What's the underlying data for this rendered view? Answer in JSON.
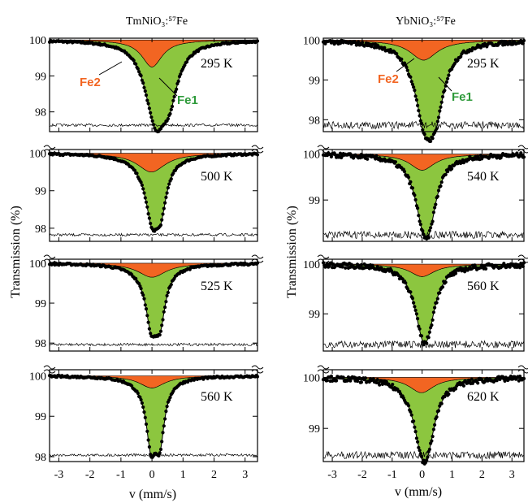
{
  "colors": {
    "fe1": "#8cc63f",
    "fe2": "#f26522",
    "data": "#000000"
  },
  "x_tick_labels": [
    "-3",
    "-2",
    "-1",
    "0",
    "1",
    "2",
    "3"
  ],
  "xlabel": "v (mm/s)",
  "ylabel": "Transmission (%)",
  "chart_data": [
    {
      "type": "line",
      "title": "TmNiO₃:⁵⁷Fe",
      "xlim": [
        -3.3,
        3.4
      ],
      "panels": [
        {
          "temperature": "295 K",
          "ylim": [
            97.45,
            100.05
          ],
          "yticks": [
            98,
            99,
            100
          ],
          "y_tick_labels": [
            "98",
            "99",
            "100"
          ],
          "min_transmission": 97.8,
          "components": [
            {
              "name": "Fe2",
              "center": 0.0,
              "width": 0.4,
              "depth": 0.75
            },
            {
              "name": "Fe1",
              "center": 0.15,
              "width": 0.35,
              "depth": 1.3
            },
            {
              "name": "Fe1",
              "center": 0.55,
              "width": 0.35,
              "depth": 1.3
            }
          ]
        },
        {
          "temperature": "500 K",
          "ylim": [
            97.65,
            100.1
          ],
          "yticks": [
            98,
            99,
            100
          ],
          "y_tick_labels": [
            "98",
            "99",
            "100"
          ],
          "min_transmission": 97.95,
          "components": [
            {
              "name": "Fe2",
              "center": -0.02,
              "width": 0.55,
              "depth": 0.5
            },
            {
              "name": "Fe1",
              "center": 0.0,
              "width": 0.22,
              "depth": 1.1
            },
            {
              "name": "Fe1",
              "center": 0.28,
              "width": 0.22,
              "depth": 1.1
            }
          ]
        },
        {
          "temperature": "525 K",
          "ylim": [
            97.8,
            100.1
          ],
          "yticks": [
            98,
            99,
            100
          ],
          "y_tick_labels": [
            "98",
            "99",
            "100"
          ],
          "min_transmission": 98.2,
          "components": [
            {
              "name": "Fe2",
              "center": 0.0,
              "width": 0.55,
              "depth": 0.35
            },
            {
              "name": "Fe1",
              "center": -0.02,
              "width": 0.2,
              "depth": 1.1
            },
            {
              "name": "Fe1",
              "center": 0.26,
              "width": 0.2,
              "depth": 1.1
            }
          ]
        },
        {
          "temperature": "560 K",
          "ylim": [
            97.88,
            100.15
          ],
          "yticks": [
            98,
            99,
            100
          ],
          "y_tick_labels": [
            "98",
            "99",
            "100"
          ],
          "min_transmission": 98.2,
          "components": [
            {
              "name": "Fe2",
              "center": 0.0,
              "width": 0.5,
              "depth": 0.3
            },
            {
              "name": "Fe1",
              "center": -0.03,
              "width": 0.18,
              "depth": 1.3
            },
            {
              "name": "Fe1",
              "center": 0.25,
              "width": 0.18,
              "depth": 1.3
            }
          ]
        }
      ],
      "component_labels": [
        "Fe2",
        "Fe1"
      ]
    },
    {
      "type": "line",
      "title": "YbNiO₃:⁵⁷Fe",
      "xlim": [
        -3.3,
        3.4
      ],
      "panels": [
        {
          "temperature": "295 K",
          "ylim": [
            97.7,
            100.05
          ],
          "yticks": [
            98,
            99,
            100
          ],
          "y_tick_labels": [
            "98",
            "99",
            "100"
          ],
          "min_transmission": 98.0,
          "components": [
            {
              "name": "Fe2",
              "center": 0.05,
              "width": 0.55,
              "depth": 0.5
            },
            {
              "name": "Fe1",
              "center": 0.1,
              "width": 0.35,
              "depth": 1.3
            },
            {
              "name": "Fe1",
              "center": 0.45,
              "width": 0.35,
              "depth": 1.3
            }
          ]
        },
        {
          "temperature": "540 K",
          "ylim": [
            98.1,
            100.1
          ],
          "yticks": [
            99,
            100
          ],
          "y_tick_labels": [
            "99",
            "100"
          ],
          "min_transmission": 98.5,
          "components": [
            {
              "name": "Fe2",
              "center": 0.0,
              "width": 0.5,
              "depth": 0.35
            },
            {
              "name": "Fe1",
              "center": 0.05,
              "width": 0.3,
              "depth": 0.85
            },
            {
              "name": "Fe1",
              "center": 0.25,
              "width": 0.3,
              "depth": 0.85
            }
          ]
        },
        {
          "temperature": "560 K",
          "ylim": [
            98.25,
            100.1
          ],
          "yticks": [
            99,
            100
          ],
          "y_tick_labels": [
            "99",
            "100"
          ],
          "min_transmission": 98.6,
          "components": [
            {
              "name": "Fe2",
              "center": 0.0,
              "width": 0.5,
              "depth": 0.25
            },
            {
              "name": "Fe1",
              "center": 0.0,
              "width": 0.3,
              "depth": 0.75
            },
            {
              "name": "Fe1",
              "center": 0.2,
              "width": 0.3,
              "depth": 0.75
            }
          ]
        },
        {
          "temperature": "620 K",
          "ylim": [
            98.35,
            100.15
          ],
          "yticks": [
            99,
            100
          ],
          "y_tick_labels": [
            "99",
            "100"
          ],
          "min_transmission": 98.65,
          "components": [
            {
              "name": "Fe2",
              "center": -0.02,
              "width": 0.5,
              "depth": 0.3
            },
            {
              "name": "Fe1",
              "center": 0.0,
              "width": 0.32,
              "depth": 0.75
            },
            {
              "name": "Fe1",
              "center": 0.18,
              "width": 0.32,
              "depth": 0.75
            }
          ]
        }
      ],
      "component_labels": [
        "Fe2",
        "Fe1"
      ]
    }
  ]
}
